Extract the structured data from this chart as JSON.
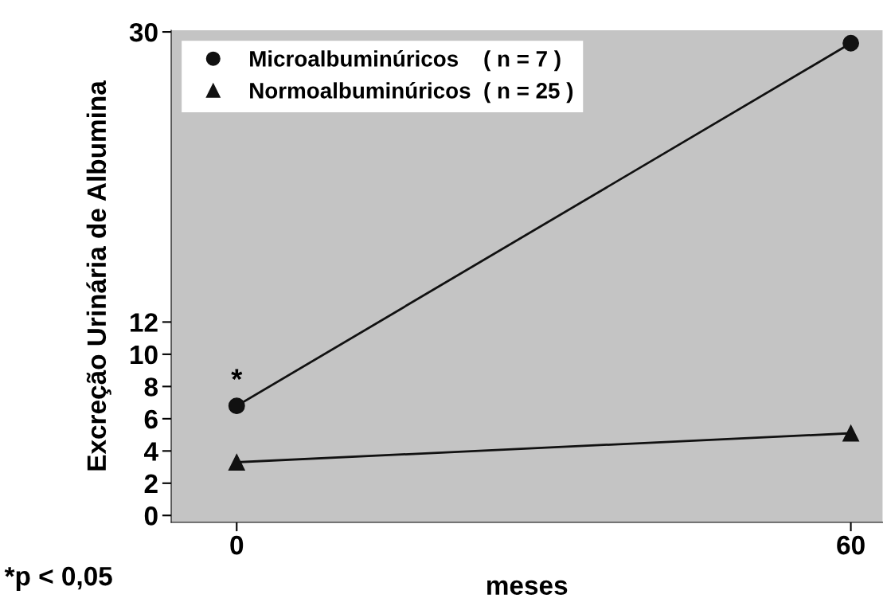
{
  "chart_data": {
    "type": "line",
    "x": [
      0,
      60
    ],
    "xlim": [
      -6.4,
      63.1
    ],
    "xticks": [
      0,
      60
    ],
    "ylim": [
      -0.43,
      30.1
    ],
    "yticks": [
      0,
      2,
      4,
      6,
      8,
      10,
      12,
      30
    ],
    "xlabel": "meses",
    "ylabel": "Excreção Urinária de Albumina",
    "grid": false,
    "legend": "top left",
    "line_style": "solid",
    "series": [
      {
        "name": "Microalbuminúricos    ( n = 7 )",
        "color": "#111111",
        "marker": "circle",
        "values": [
          6.8,
          29.3
        ]
      },
      {
        "name": "Normoalbuminúricos  ( n = 25 )",
        "color": "#111111",
        "marker": "triangle",
        "values": [
          3.3,
          5.1
        ]
      }
    ],
    "annotations": [
      "*",
      "*p < 0,05"
    ]
  }
}
